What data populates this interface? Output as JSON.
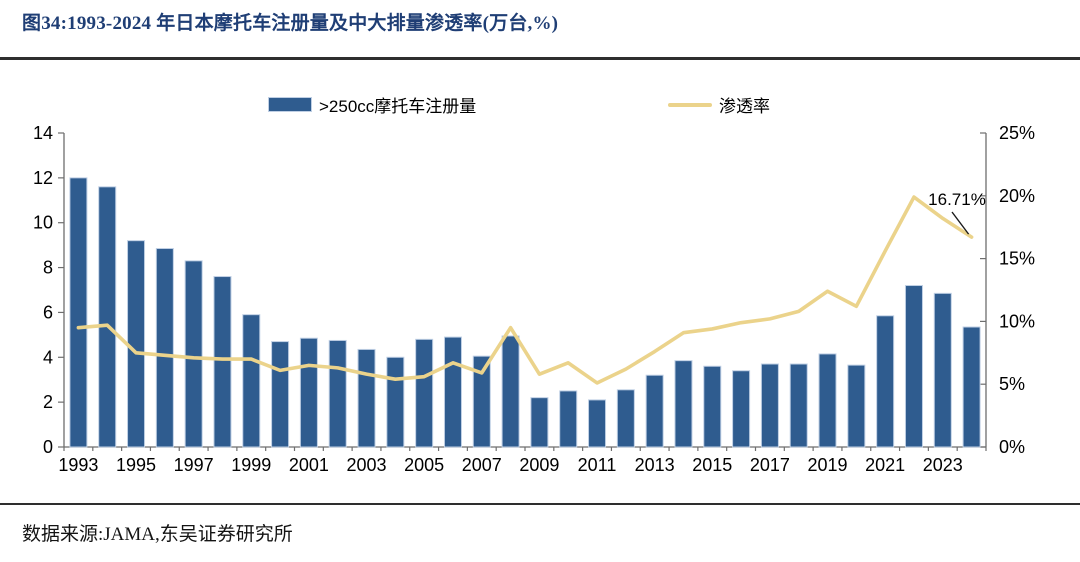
{
  "figure": {
    "title": "图34:1993-2024 年日本摩托车注册量及中大排量渗透率(万台,%)",
    "source": "数据来源:JAMA,东吴证券研究所"
  },
  "colors": {
    "bar_fill": "#2F5C8F",
    "bar_stroke": "#BFCFE4",
    "line": "#EBD38B",
    "title_navy": "#1F3E75",
    "axis_line": "#6e6e6e",
    "text": "#000000",
    "annotation_leader": "#1a1a1a"
  },
  "chart_data": {
    "type": "bar+line",
    "title": "1993-2024 年日本摩托车注册量及中大排量渗透率(万台,%)",
    "legend_position": "top",
    "grid": false,
    "categories": [
      "1993",
      "1994",
      "1995",
      "1996",
      "1997",
      "1998",
      "1999",
      "2000",
      "2001",
      "2002",
      "2003",
      "2004",
      "2005",
      "2006",
      "2007",
      "2008",
      "2009",
      "2010",
      "2011",
      "2012",
      "2013",
      "2014",
      "2015",
      "2016",
      "2017",
      "2018",
      "2019",
      "2020",
      "2021",
      "2022",
      "2023",
      "2024"
    ],
    "series": [
      {
        "name": ">250cc摩托车注册量",
        "type": "bar",
        "axis": "left",
        "unit": "万台",
        "color": "#2F5C8F",
        "values": [
          12.0,
          11.6,
          9.2,
          8.85,
          8.3,
          7.6,
          5.9,
          4.7,
          4.85,
          4.75,
          4.35,
          4.0,
          4.8,
          4.9,
          4.05,
          4.95,
          2.2,
          2.5,
          2.1,
          2.55,
          3.2,
          3.85,
          3.6,
          3.4,
          3.7,
          3.7,
          4.15,
          3.65,
          5.85,
          7.2,
          6.85,
          5.35
        ]
      },
      {
        "name": "渗透率",
        "type": "line",
        "axis": "right",
        "unit": "%",
        "color": "#EBD38B",
        "values": [
          9.5,
          9.7,
          7.5,
          7.3,
          7.1,
          7.0,
          7.0,
          6.1,
          6.5,
          6.3,
          5.8,
          5.4,
          5.6,
          6.7,
          5.9,
          9.5,
          5.8,
          6.7,
          5.1,
          6.2,
          7.6,
          9.1,
          9.4,
          9.9,
          10.2,
          10.8,
          12.4,
          11.2,
          15.6,
          19.9,
          18.2,
          16.71
        ]
      }
    ],
    "left_axis": {
      "min": 0,
      "max": 14,
      "tick_labels": [
        "0",
        "2",
        "4",
        "6",
        "8",
        "10",
        "12",
        "14"
      ]
    },
    "right_axis": {
      "min": 0,
      "max": 25,
      "tick_labels": [
        "0%",
        "5%",
        "10%",
        "15%",
        "20%",
        "25%"
      ]
    },
    "x_tick_labels": [
      "1993",
      "1995",
      "1997",
      "1999",
      "2001",
      "2003",
      "2005",
      "2007",
      "2009",
      "2011",
      "2013",
      "2015",
      "2017",
      "2019",
      "2021",
      "2023"
    ],
    "annotation": {
      "text": "16.71%",
      "series": "渗透率",
      "category": "2024"
    }
  }
}
